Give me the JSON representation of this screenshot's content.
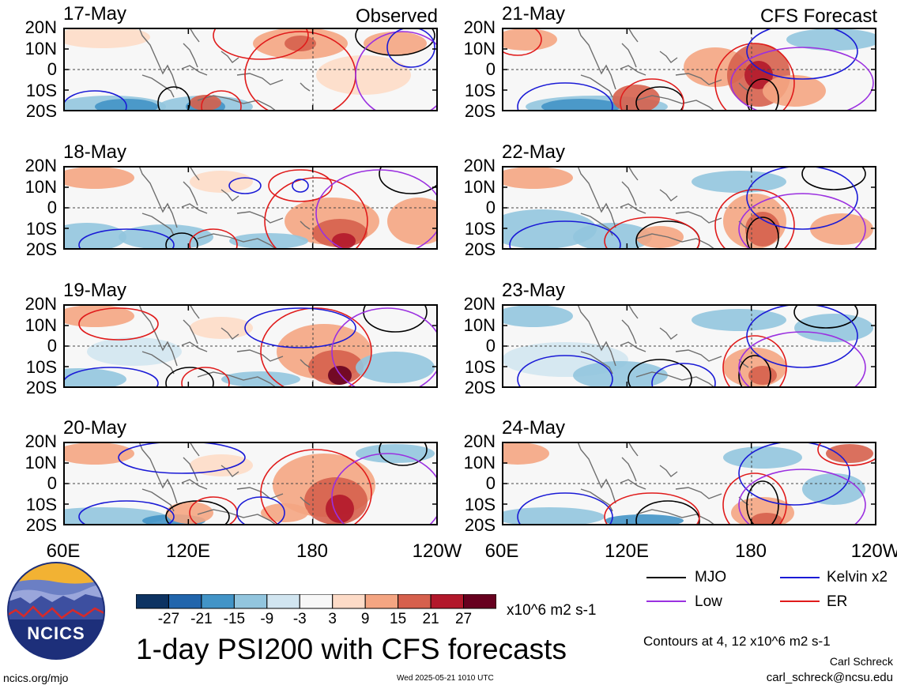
{
  "header": {
    "left_tag": "Observed",
    "right_tag": "CFS Forecast"
  },
  "lat_labels": [
    "20N",
    "10N",
    "0",
    "10S",
    "20S"
  ],
  "lon_labels": [
    "60E",
    "120E",
    "180",
    "120W"
  ],
  "panels": {
    "observed": [
      "17-May",
      "18-May",
      "19-May",
      "20-May"
    ],
    "forecast": [
      "21-May",
      "22-May",
      "23-May",
      "24-May"
    ]
  },
  "colors": {
    "mjo": "#000000",
    "kelvin": "#1a1ad6",
    "low": "#9b30e0",
    "er": "#e01b1b",
    "map": "#6e6e6e"
  },
  "colorbar": {
    "colors": [
      "#0d3362",
      "#2165ac",
      "#4294c7",
      "#92c5de",
      "#d1e5f0",
      "#f7f7f7",
      "#fddbc7",
      "#f4a582",
      "#d6604d",
      "#b2182b",
      "#67001f"
    ],
    "labels": [
      "-27",
      "-21",
      "-15",
      "-9",
      "-3",
      "3",
      "9",
      "15",
      "21",
      "27"
    ],
    "units": "x10^6 m2 s-1"
  },
  "legend": {
    "mjo": "MJO",
    "kelvin": "Kelvin x2",
    "low": "Low",
    "er": "ER"
  },
  "logo": {
    "text": "NCICS"
  },
  "footer": {
    "title": "1-day PSI200 with CFS forecasts",
    "contours_note": "Contours at 4, 12 x10^6 m2 s-1",
    "author": "Carl Schreck",
    "email": "carl_schreck@ncsu.edu",
    "url": "ncics.org/mjo",
    "timestamp": "Wed 2025-05-21 1010 UTC"
  }
}
